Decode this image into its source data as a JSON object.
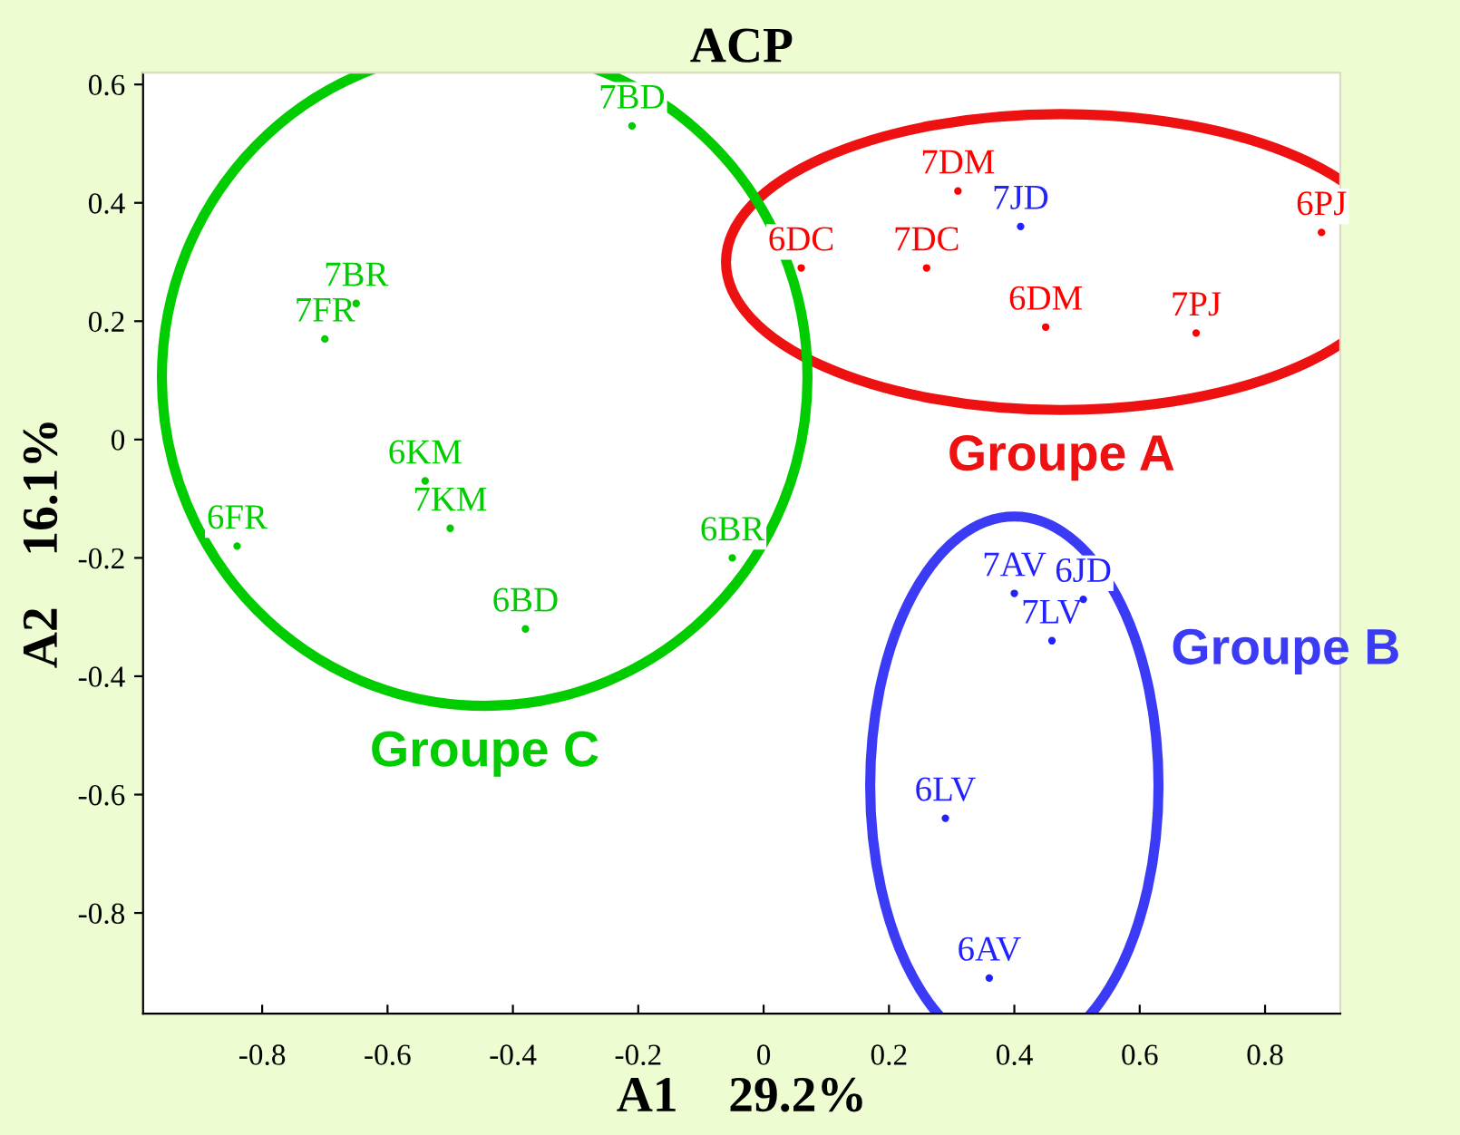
{
  "chart_data": {
    "type": "scatter",
    "title": "ACP",
    "xlabel": "A1    29.2%",
    "ylabel": "A2    16.1%",
    "xlim": [
      -0.99,
      0.92
    ],
    "ylim": [
      -0.97,
      0.62
    ],
    "xticks": [
      -0.8,
      -0.6,
      -0.4,
      -0.2,
      0,
      0.2,
      0.4,
      0.6,
      0.8
    ],
    "yticks": [
      -0.8,
      -0.6,
      -0.4,
      -0.2,
      0,
      0.2,
      0.4,
      0.6
    ],
    "grid": false,
    "legend": false,
    "marker": "circle",
    "series": [
      {
        "name": "Groupe A",
        "color": "#ee1111",
        "x": [
          0.06,
          0.31,
          0.41,
          0.26,
          0.89,
          0.45,
          0.69
        ],
        "values": [
          0.29,
          0.42,
          0.36,
          0.29,
          0.35,
          0.19,
          0.18
        ],
        "colors": [
          "#ff0000",
          "#ff0000",
          "#2222ff",
          "#ff0000",
          "#ff0000",
          "#ff0000",
          "#ff0000"
        ]
      },
      {
        "name": "Groupe B",
        "color": "#3b3bf5",
        "x": [
          0.4,
          0.51,
          0.46,
          0.29,
          0.36
        ],
        "values": [
          -0.26,
          -0.27,
          -0.34,
          -0.64,
          -0.91
        ],
        "colors": [
          "#2222ff",
          "#2222ff",
          "#2222ff",
          "#2222ff",
          "#2222ff"
        ]
      },
      {
        "name": "Groupe C",
        "color": "#00cc00",
        "x": [
          -0.21,
          -0.65,
          -0.7,
          -0.54,
          -0.5,
          -0.84,
          -0.05,
          -0.38
        ],
        "values": [
          0.53,
          0.23,
          0.17,
          -0.07,
          -0.15,
          -0.18,
          -0.2,
          -0.32
        ],
        "colors": [
          "#00cc00",
          "#00cc00",
          "#00cc00",
          "#00cc00",
          "#00cc00",
          "#00cc00",
          "#00cc00",
          "#00cc00"
        ]
      }
    ],
    "annotations": [
      {
        "text": "6DC",
        "x": 0.06,
        "y": 0.29
      },
      {
        "text": "7DM",
        "x": 0.31,
        "y": 0.42
      },
      {
        "text": "7JD",
        "x": 0.41,
        "y": 0.36
      },
      {
        "text": "7DC",
        "x": 0.26,
        "y": 0.29
      },
      {
        "text": "6PJ",
        "x": 0.89,
        "y": 0.35
      },
      {
        "text": "6DM",
        "x": 0.45,
        "y": 0.19
      },
      {
        "text": "7PJ",
        "x": 0.69,
        "y": 0.18
      },
      {
        "text": "7AV",
        "x": 0.4,
        "y": -0.26
      },
      {
        "text": "6JD",
        "x": 0.51,
        "y": -0.27
      },
      {
        "text": "7LV",
        "x": 0.46,
        "y": -0.34
      },
      {
        "text": "6LV",
        "x": 0.29,
        "y": -0.64
      },
      {
        "text": "6AV",
        "x": 0.36,
        "y": -0.91
      },
      {
        "text": "7BD",
        "x": -0.21,
        "y": 0.53
      },
      {
        "text": "7BR",
        "x": -0.65,
        "y": 0.23
      },
      {
        "text": "7FR",
        "x": -0.7,
        "y": 0.17
      },
      {
        "text": "6KM",
        "x": -0.54,
        "y": -0.07
      },
      {
        "text": "7KM",
        "x": -0.5,
        "y": -0.15
      },
      {
        "text": "6FR",
        "x": -0.84,
        "y": -0.18
      },
      {
        "text": "6BR",
        "x": -0.05,
        "y": -0.2
      },
      {
        "text": "6BD",
        "x": -0.38,
        "y": -0.32
      }
    ]
  }
}
